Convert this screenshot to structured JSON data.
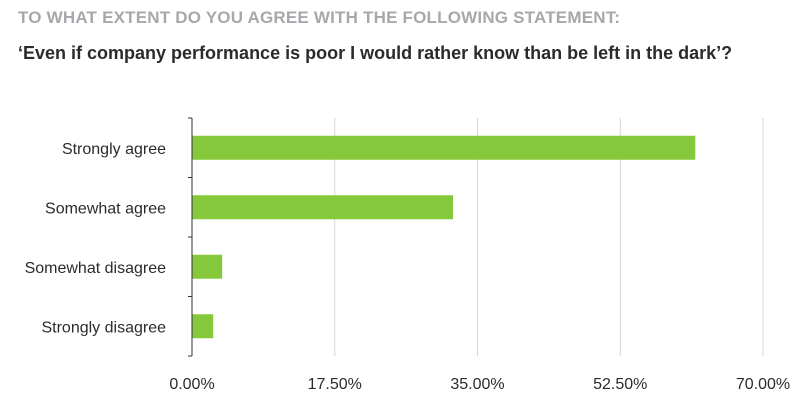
{
  "header": {
    "question": "TO WHAT EXTENT DO YOU AGREE WITH THE FOLLOWING STATEMENT:",
    "statement": "‘Even if company performance is poor I would rather know than be left in the dark’?"
  },
  "colors": {
    "bar": "#86c83c",
    "question_text": "#a6a8ab",
    "statement_text": "#2b2b2b",
    "label_text": "#2b2b2b",
    "axis": "#333333",
    "grid": "#d6d6d6"
  },
  "chart_data": {
    "type": "bar",
    "orientation": "horizontal",
    "title": "TO WHAT EXTENT DO YOU AGREE WITH THE FOLLOWING STATEMENT:",
    "subtitle": "‘Even if company performance is poor I would rather know than be left in the dark’?",
    "categories": [
      "Strongly agree",
      "Somewhat agree",
      "Somewhat disagree",
      "Strongly disagree"
    ],
    "values": [
      61.7,
      32.0,
      3.7,
      2.6
    ],
    "xlim": [
      0,
      70
    ],
    "xticks": [
      0,
      17.5,
      35,
      52.5,
      70
    ],
    "xtick_labels": [
      "0.00%",
      "17.50%",
      "35.00%",
      "52.50%",
      "70.00%"
    ],
    "xlabel": "",
    "ylabel": "",
    "grid": "vertical",
    "legend": "none"
  }
}
